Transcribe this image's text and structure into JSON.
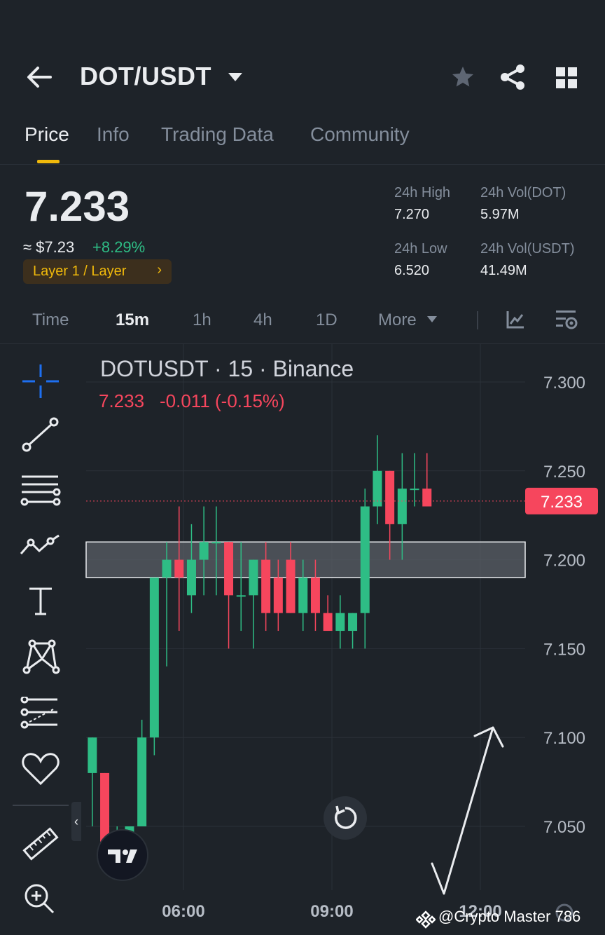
{
  "header": {
    "title": "DOT/USDT"
  },
  "tabs": [
    {
      "label": "Price",
      "active": true
    },
    {
      "label": "Info",
      "active": false
    },
    {
      "label": "Trading Data",
      "active": false
    },
    {
      "label": "Community",
      "active": false
    }
  ],
  "ticker": {
    "price": "7.233",
    "approx": "≈ $7.23",
    "change": "+8.29%",
    "tag": "Layer 1 / Layer",
    "high_label": "24h High",
    "high": "7.270",
    "low_label": "24h Low",
    "low": "6.520",
    "vol_dot_label": "24h Vol(DOT)",
    "vol_dot": "5.97M",
    "vol_usdt_label": "24h Vol(USDT)",
    "vol_usdt": "41.49M"
  },
  "timeframes": [
    {
      "label": "Time",
      "active": false
    },
    {
      "label": "15m",
      "active": true
    },
    {
      "label": "1h",
      "active": false
    },
    {
      "label": "4h",
      "active": false
    },
    {
      "label": "1D",
      "active": false
    },
    {
      "label": "More",
      "active": false
    }
  ],
  "chart_data": {
    "type": "candlestick",
    "title": "DOTUSDT · 15 · Binance",
    "legend_price": "7.233",
    "legend_change": "-0.011 (-0.15%)",
    "current_price_label": "7.233",
    "current_price": 7.233,
    "ylim": [
      7.02,
      7.32
    ],
    "y_ticks": [
      "7.300",
      "7.250",
      "7.200",
      "7.150",
      "7.100",
      "7.050"
    ],
    "y_tick_values": [
      7.3,
      7.25,
      7.2,
      7.15,
      7.1,
      7.05
    ],
    "x_ticks": [
      "06:00",
      "09:00",
      "12:00"
    ],
    "x_tick_index": [
      7.75,
      19.75,
      31.75
    ],
    "support_zone": [
      7.19,
      7.21
    ],
    "candles": [
      {
        "o": 7.08,
        "h": 7.1,
        "l": 7.05,
        "c": 7.1
      },
      {
        "o": 7.08,
        "h": 7.08,
        "l": 7.04,
        "c": 7.04
      },
      {
        "o": 7.04,
        "h": 7.05,
        "l": 7.03,
        "c": 7.04
      },
      {
        "o": 7.04,
        "h": 7.05,
        "l": 7.03,
        "c": 7.05
      },
      {
        "o": 7.05,
        "h": 7.11,
        "l": 7.05,
        "c": 7.1
      },
      {
        "o": 7.1,
        "h": 7.19,
        "l": 7.09,
        "c": 7.19
      },
      {
        "o": 7.19,
        "h": 7.21,
        "l": 7.14,
        "c": 7.2
      },
      {
        "o": 7.2,
        "h": 7.23,
        "l": 7.16,
        "c": 7.19
      },
      {
        "o": 7.18,
        "h": 7.22,
        "l": 7.17,
        "c": 7.2
      },
      {
        "o": 7.2,
        "h": 7.23,
        "l": 7.18,
        "c": 7.21
      },
      {
        "o": 7.21,
        "h": 7.23,
        "l": 7.18,
        "c": 7.21
      },
      {
        "o": 7.21,
        "h": 7.21,
        "l": 7.15,
        "c": 7.18
      },
      {
        "o": 7.18,
        "h": 7.21,
        "l": 7.16,
        "c": 7.18
      },
      {
        "o": 7.18,
        "h": 7.2,
        "l": 7.15,
        "c": 7.2
      },
      {
        "o": 7.2,
        "h": 7.21,
        "l": 7.16,
        "c": 7.17
      },
      {
        "o": 7.19,
        "h": 7.2,
        "l": 7.16,
        "c": 7.17
      },
      {
        "o": 7.2,
        "h": 7.21,
        "l": 7.17,
        "c": 7.17
      },
      {
        "o": 7.17,
        "h": 7.2,
        "l": 7.16,
        "c": 7.19
      },
      {
        "o": 7.19,
        "h": 7.2,
        "l": 7.16,
        "c": 7.17
      },
      {
        "o": 7.17,
        "h": 7.18,
        "l": 7.16,
        "c": 7.16
      },
      {
        "o": 7.16,
        "h": 7.18,
        "l": 7.15,
        "c": 7.17
      },
      {
        "o": 7.16,
        "h": 7.17,
        "l": 7.15,
        "c": 7.17
      },
      {
        "o": 7.17,
        "h": 7.24,
        "l": 7.15,
        "c": 7.23
      },
      {
        "o": 7.23,
        "h": 7.27,
        "l": 7.22,
        "c": 7.25
      },
      {
        "o": 7.25,
        "h": 7.25,
        "l": 7.2,
        "c": 7.22
      },
      {
        "o": 7.22,
        "h": 7.26,
        "l": 7.2,
        "c": 7.24
      },
      {
        "o": 7.24,
        "h": 7.26,
        "l": 7.23,
        "c": 7.24
      },
      {
        "o": 7.24,
        "h": 7.26,
        "l": 7.23,
        "c": 7.23
      }
    ]
  },
  "watermark": "@Crypto Master 786",
  "colors": {
    "up": "#2ebd85",
    "down": "#f6465d",
    "accent": "#f0b90b",
    "bg": "#1e2329"
  },
  "icons": [
    "back-arrow-icon",
    "dropdown-caret-icon",
    "star-icon",
    "share-icon",
    "grid-icon",
    "indicator-icon",
    "settings-icon",
    "crosshair-icon",
    "trendline-icon",
    "horizontal-lines-icon",
    "polyline-icon",
    "text-icon",
    "pattern-icon",
    "fib-icon",
    "favorite-icon",
    "ruler-icon",
    "zoom-icon",
    "reset-icon",
    "tradingview-logo",
    "collapse-icon"
  ]
}
